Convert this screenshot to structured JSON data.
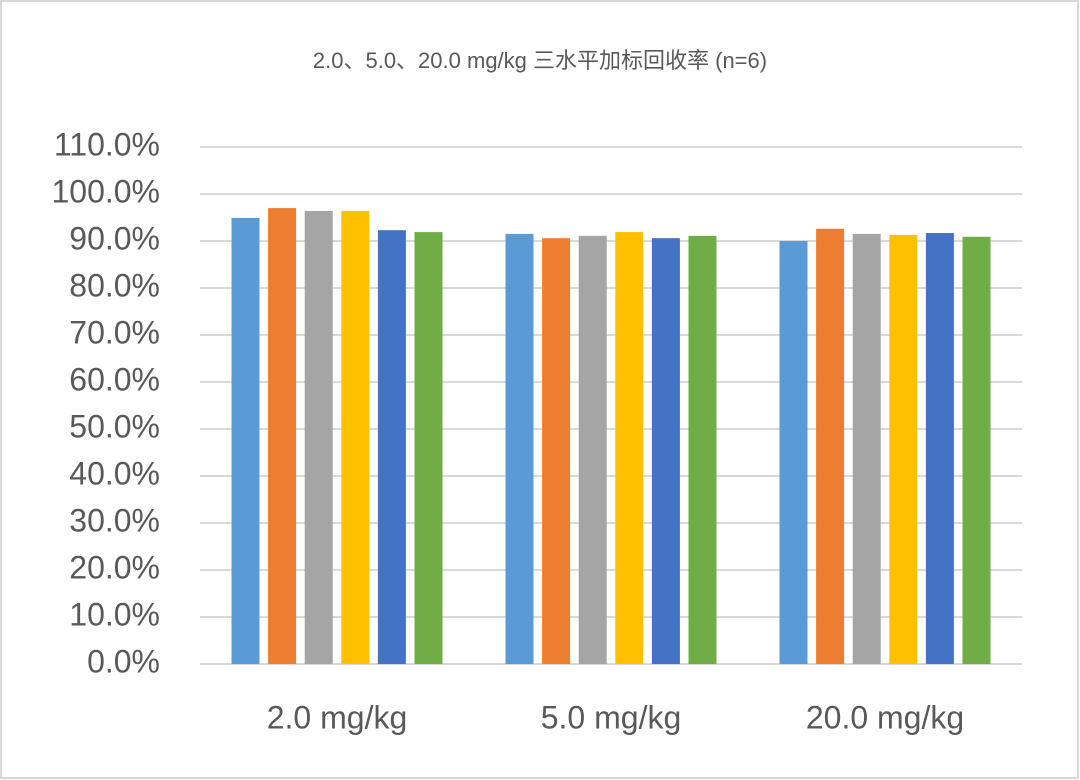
{
  "chart_data": {
    "type": "bar",
    "title": "2.0、5.0、20.0 mg/kg 三水平加标回收率 (n=6)",
    "categories": [
      "2.0 mg/kg",
      "5.0 mg/kg",
      "20.0 mg/kg"
    ],
    "series": [
      {
        "color": "#5b9bd5",
        "values": [
          94.9,
          91.5,
          90.0
        ]
      },
      {
        "color": "#ed7d31",
        "values": [
          97.0,
          90.6,
          92.6
        ]
      },
      {
        "color": "#a5a5a5",
        "values": [
          96.4,
          91.1,
          91.5
        ]
      },
      {
        "color": "#ffc000",
        "values": [
          96.4,
          91.9,
          91.3
        ]
      },
      {
        "color": "#4472c4",
        "values": [
          92.3,
          90.6,
          91.7
        ]
      },
      {
        "color": "#70ad47",
        "values": [
          91.9,
          91.1,
          90.9
        ]
      }
    ],
    "ylim": [
      0,
      110
    ],
    "yticks": [
      {
        "value": 0,
        "label": "0.0%"
      },
      {
        "value": 10,
        "label": "10.0%"
      },
      {
        "value": 20,
        "label": "20.0%"
      },
      {
        "value": 30,
        "label": "30.0%"
      },
      {
        "value": 40,
        "label": "40.0%"
      },
      {
        "value": 50,
        "label": "50.0%"
      },
      {
        "value": 60,
        "label": "60.0%"
      },
      {
        "value": 70,
        "label": "70.0%"
      },
      {
        "value": 80,
        "label": "80.0%"
      },
      {
        "value": 90,
        "label": "90.0%"
      },
      {
        "value": 100,
        "label": "100.0%"
      },
      {
        "value": 110,
        "label": "110.0%"
      }
    ],
    "grid": true
  }
}
